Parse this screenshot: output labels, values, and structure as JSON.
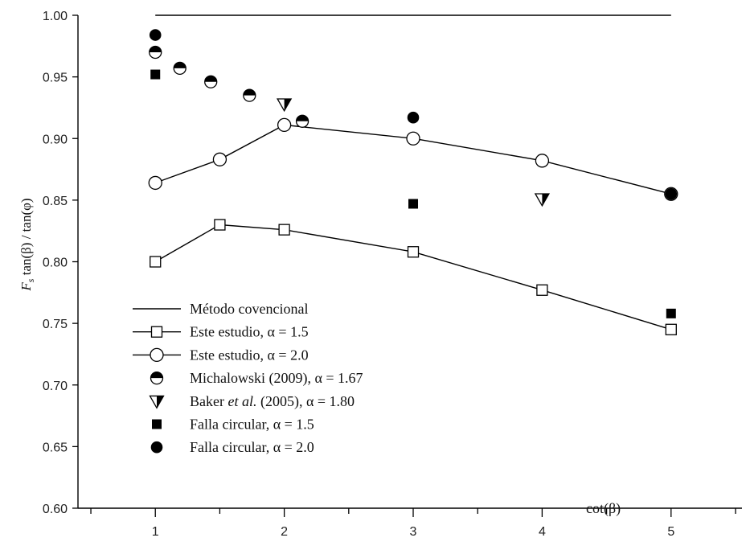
{
  "chart_data": {
    "type": "scatter",
    "title": "",
    "xlabel": "cot(β)",
    "ylabel": "Fs tan(β) / tan(φ)",
    "ylabel_parts": {
      "F": "F",
      "s": "s",
      "rest": " tan(β) / tan(φ)"
    },
    "xlim": [
      0.4,
      5.55
    ],
    "ylim": [
      0.6,
      1.0
    ],
    "xticks": [
      1,
      2,
      3,
      4,
      5
    ],
    "xtick_labels": [
      "1",
      "2",
      "3",
      "4",
      "5"
    ],
    "yticks": [
      0.6,
      0.65,
      0.7,
      0.75,
      0.8,
      0.85,
      0.9,
      0.95,
      1.0
    ],
    "ytick_labels": [
      "0.60",
      "0.65",
      "0.70",
      "0.75",
      "0.80",
      "0.85",
      "0.90",
      "0.95",
      "1.00"
    ],
    "grid": false,
    "legend_position": "bottom-left",
    "series": [
      {
        "name": "Método covencional",
        "marker": "none",
        "line": true,
        "points": [
          [
            1,
            1.0
          ],
          [
            5,
            1.0
          ]
        ]
      },
      {
        "name": "Este estudio, α = 1.5",
        "marker": "open-square",
        "line": true,
        "points": [
          [
            1,
            0.8
          ],
          [
            1.5,
            0.83
          ],
          [
            2,
            0.826
          ],
          [
            3,
            0.808
          ],
          [
            4,
            0.777
          ],
          [
            5,
            0.745
          ]
        ]
      },
      {
        "name": "Este estudio, α = 2.0",
        "marker": "open-circle",
        "line": true,
        "points": [
          [
            1,
            0.864
          ],
          [
            1.5,
            0.883
          ],
          [
            2,
            0.911
          ],
          [
            3,
            0.9
          ],
          [
            4,
            0.882
          ],
          [
            5,
            0.855
          ]
        ]
      },
      {
        "name": "Michalowski (2009), α = 1.67",
        "marker": "half-circle",
        "line": false,
        "points": [
          [
            1,
            0.97
          ],
          [
            1.19,
            0.957
          ],
          [
            1.43,
            0.946
          ],
          [
            1.73,
            0.935
          ],
          [
            2.14,
            0.914
          ]
        ]
      },
      {
        "name": "Baker et al. (2005), α = 1.80",
        "marker": "half-triangle",
        "line": false,
        "points": [
          [
            2,
            0.928
          ],
          [
            4,
            0.851
          ]
        ]
      },
      {
        "name": "Falla circular, α = 1.5",
        "marker": "filled-square",
        "line": false,
        "points": [
          [
            1,
            0.952
          ],
          [
            3,
            0.847
          ],
          [
            5,
            0.758
          ]
        ]
      },
      {
        "name": "Falla circular, α = 2.0",
        "marker": "filled-circle",
        "line": false,
        "points": [
          [
            1,
            0.984
          ],
          [
            3,
            0.917
          ],
          [
            5,
            0.855
          ]
        ]
      }
    ],
    "legend": [
      {
        "pre": "Método covencional"
      },
      {
        "pre": "Este estudio, α = 1.5"
      },
      {
        "pre": "Este estudio, α = 2.0"
      },
      {
        "pre": "Michalowski (2009), α = 1.67"
      },
      {
        "pre": "Baker ",
        "italic": "et al.",
        "post": " (2005), α = 1.80"
      },
      {
        "pre": "Falla circular, α = 1.5"
      },
      {
        "pre": "Falla circular, α = 2.0"
      }
    ]
  }
}
